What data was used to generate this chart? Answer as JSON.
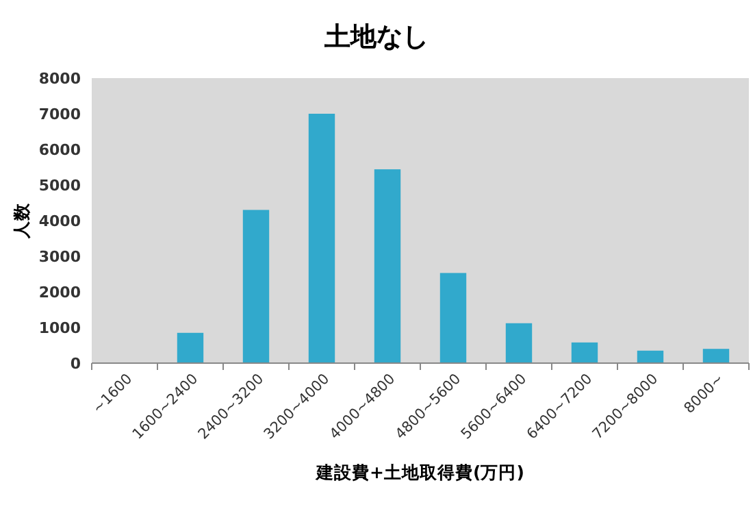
{
  "chart_data": {
    "type": "bar",
    "title": "土地なし",
    "xlabel": "建設費+土地取得費(万円)",
    "ylabel": "人数",
    "categories": [
      "~1600",
      "1600~2400",
      "2400~3200",
      "3200~4000",
      "4000~4800",
      "4800~5600",
      "5600~6400",
      "6400~7200",
      "7200~8000",
      "8000~"
    ],
    "values": [
      0,
      850,
      4300,
      7000,
      5440,
      2530,
      1120,
      580,
      350,
      400
    ],
    "color": "#31a9cc",
    "ylim": [
      0,
      8000
    ],
    "yticks": [
      0,
      1000,
      2000,
      3000,
      4000,
      5000,
      6000,
      7000,
      8000
    ],
    "grid": false
  }
}
